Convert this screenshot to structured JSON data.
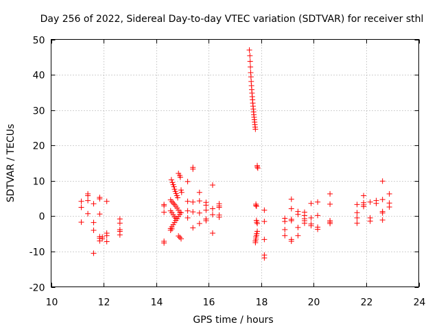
{
  "chart_data": {
    "type": "scatter",
    "marker": "plus",
    "title": "Day 256 of 2022, Sidereal Day-to-day VTEC variation (SDTVAR) for receiver sthl",
    "xlabel": "GPS time / hours",
    "ylabel": "SDTVAR / TECUs",
    "xlim": [
      10,
      24
    ],
    "ylim": [
      -20,
      50
    ],
    "xticks": [
      10,
      12,
      14,
      16,
      18,
      20,
      22,
      24
    ],
    "yticks": [
      -20,
      -10,
      0,
      10,
      20,
      30,
      40,
      50
    ],
    "xtick_labels": [
      "10",
      "12",
      "14",
      "16",
      "18",
      "20",
      "22",
      "24"
    ],
    "ytick_labels": [
      "-20",
      "-10",
      "0",
      "10",
      "20",
      "30",
      "40",
      "50"
    ],
    "grid": true,
    "color": "#ff0000",
    "series": [
      {
        "name": "sthl",
        "points": [
          [
            11.15,
            4.2
          ],
          [
            11.15,
            2.5
          ],
          [
            11.15,
            -1.7
          ],
          [
            11.4,
            6.3
          ],
          [
            11.4,
            5.8
          ],
          [
            11.4,
            4.4
          ],
          [
            11.4,
            0.7
          ],
          [
            11.62,
            3.5
          ],
          [
            11.62,
            -1.8
          ],
          [
            11.62,
            -4.0
          ],
          [
            11.62,
            -10.5
          ],
          [
            11.85,
            5.3
          ],
          [
            11.85,
            4.9
          ],
          [
            11.85,
            0.6
          ],
          [
            11.85,
            -5.8
          ],
          [
            11.85,
            -6.3
          ],
          [
            11.85,
            -7.0
          ],
          [
            11.95,
            -5.9
          ],
          [
            11.95,
            -6.4
          ],
          [
            12.12,
            4.2
          ],
          [
            12.12,
            -4.8
          ],
          [
            12.12,
            -5.5
          ],
          [
            12.12,
            -7.2
          ],
          [
            12.62,
            -0.8
          ],
          [
            12.62,
            -2.0
          ],
          [
            12.62,
            -3.8
          ],
          [
            12.62,
            -4.3
          ],
          [
            12.62,
            -5.3
          ],
          [
            14.3,
            3.3
          ],
          [
            14.3,
            2.9
          ],
          [
            14.3,
            1.1
          ],
          [
            14.3,
            -7.1
          ],
          [
            14.3,
            -7.6
          ],
          [
            14.58,
            10.3
          ],
          [
            14.62,
            9.5
          ],
          [
            14.65,
            8.9
          ],
          [
            14.68,
            8.3
          ],
          [
            14.7,
            7.6
          ],
          [
            14.73,
            7.0
          ],
          [
            14.76,
            6.4
          ],
          [
            14.79,
            5.8
          ],
          [
            14.82,
            5.2
          ],
          [
            14.55,
            4.6
          ],
          [
            14.6,
            4.1
          ],
          [
            14.65,
            3.7
          ],
          [
            14.7,
            3.3
          ],
          [
            14.75,
            2.8
          ],
          [
            14.8,
            2.3
          ],
          [
            14.85,
            1.7
          ],
          [
            14.9,
            1.1
          ],
          [
            14.55,
            1.5
          ],
          [
            14.6,
            1.0
          ],
          [
            14.65,
            0.4
          ],
          [
            14.7,
            -0.2
          ],
          [
            14.75,
            -0.6
          ],
          [
            14.55,
            -3.5
          ],
          [
            14.6,
            -3.0
          ],
          [
            14.65,
            -2.4
          ],
          [
            14.7,
            -1.8
          ],
          [
            14.75,
            -1.2
          ],
          [
            14.8,
            -0.7
          ],
          [
            14.85,
            -0.1
          ],
          [
            14.9,
            0.5
          ],
          [
            14.95,
            1.0
          ],
          [
            14.55,
            -4.0
          ],
          [
            14.6,
            -3.6
          ],
          [
            14.85,
            12.1
          ],
          [
            14.9,
            11.5
          ],
          [
            14.92,
            11.0
          ],
          [
            14.95,
            7.4
          ],
          [
            14.97,
            6.7
          ],
          [
            14.85,
            -5.6
          ],
          [
            14.9,
            -6.0
          ],
          [
            14.95,
            -6.4
          ],
          [
            15.2,
            9.8
          ],
          [
            15.2,
            4.2
          ],
          [
            15.2,
            1.5
          ],
          [
            15.2,
            -0.5
          ],
          [
            15.4,
            13.8
          ],
          [
            15.4,
            13.3
          ],
          [
            15.4,
            4.0
          ],
          [
            15.4,
            1.2
          ],
          [
            15.4,
            -3.3
          ],
          [
            15.65,
            6.7
          ],
          [
            15.65,
            4.3
          ],
          [
            15.65,
            0.9
          ],
          [
            15.65,
            -2.1
          ],
          [
            15.9,
            3.9
          ],
          [
            15.9,
            3.1
          ],
          [
            15.9,
            1.7
          ],
          [
            15.9,
            -0.8
          ],
          [
            15.9,
            -1.3
          ],
          [
            16.15,
            8.8
          ],
          [
            16.15,
            2.1
          ],
          [
            16.15,
            0.4
          ],
          [
            16.15,
            -4.8
          ],
          [
            16.4,
            3.5
          ],
          [
            16.4,
            2.9
          ],
          [
            16.4,
            2.5
          ],
          [
            16.4,
            0.3
          ],
          [
            16.4,
            -0.3
          ],
          [
            17.55,
            47.0
          ],
          [
            17.57,
            45.4
          ],
          [
            17.58,
            43.8
          ],
          [
            17.59,
            42.2
          ],
          [
            17.6,
            40.6
          ],
          [
            17.61,
            39.4
          ],
          [
            17.62,
            38.1
          ],
          [
            17.63,
            36.9
          ],
          [
            17.64,
            35.8
          ],
          [
            17.65,
            34.8
          ],
          [
            17.66,
            33.8
          ],
          [
            17.67,
            32.9
          ],
          [
            17.68,
            32.0
          ],
          [
            17.69,
            31.1
          ],
          [
            17.7,
            30.3
          ],
          [
            17.71,
            29.5
          ],
          [
            17.72,
            28.7
          ],
          [
            17.73,
            28.0
          ],
          [
            17.74,
            27.3
          ],
          [
            17.75,
            26.6
          ],
          [
            17.76,
            25.9
          ],
          [
            17.77,
            25.2
          ],
          [
            17.78,
            24.6
          ],
          [
            17.85,
            14.3
          ],
          [
            17.85,
            13.9
          ],
          [
            17.87,
            13.6
          ],
          [
            17.8,
            3.4
          ],
          [
            17.8,
            3.0
          ],
          [
            17.82,
            2.8
          ],
          [
            17.82,
            -1.2
          ],
          [
            17.83,
            -1.7
          ],
          [
            17.85,
            -2.1
          ],
          [
            17.85,
            -4.3
          ],
          [
            17.83,
            -4.9
          ],
          [
            17.82,
            -5.4
          ],
          [
            17.8,
            -5.9
          ],
          [
            17.8,
            -6.5
          ],
          [
            17.78,
            -7.0
          ],
          [
            17.78,
            -7.5
          ],
          [
            18.12,
            1.7
          ],
          [
            18.12,
            -1.5
          ],
          [
            18.12,
            -6.6
          ],
          [
            18.12,
            -11.0
          ],
          [
            18.12,
            -11.8
          ],
          [
            18.9,
            -0.6
          ],
          [
            18.9,
            -1.5
          ],
          [
            18.9,
            -3.8
          ],
          [
            18.9,
            -5.5
          ],
          [
            19.15,
            4.8
          ],
          [
            19.15,
            2.1
          ],
          [
            19.15,
            -0.9
          ],
          [
            19.15,
            -1.3
          ],
          [
            19.15,
            -6.6
          ],
          [
            19.15,
            -7.1
          ],
          [
            19.4,
            1.3
          ],
          [
            19.4,
            0.5
          ],
          [
            19.4,
            -3.2
          ],
          [
            19.4,
            -5.5
          ],
          [
            19.65,
            1.1
          ],
          [
            19.65,
            0.2
          ],
          [
            19.65,
            -0.7
          ],
          [
            19.65,
            -1.3
          ],
          [
            19.65,
            -2.0
          ],
          [
            19.9,
            3.6
          ],
          [
            19.9,
            -0.5
          ],
          [
            19.9,
            -2.2
          ],
          [
            19.9,
            -2.7
          ],
          [
            20.15,
            4.0
          ],
          [
            20.15,
            0.2
          ],
          [
            20.15,
            -3.1
          ],
          [
            20.15,
            -3.7
          ],
          [
            20.62,
            6.3
          ],
          [
            20.62,
            3.4
          ],
          [
            20.62,
            -1.3
          ],
          [
            20.62,
            -1.7
          ],
          [
            20.62,
            -2.1
          ],
          [
            21.65,
            3.3
          ],
          [
            21.65,
            1.0
          ],
          [
            21.65,
            -0.5
          ],
          [
            21.65,
            -2.0
          ],
          [
            21.9,
            5.8
          ],
          [
            21.9,
            3.8
          ],
          [
            21.9,
            3.2
          ],
          [
            21.9,
            2.7
          ],
          [
            22.15,
            4.0
          ],
          [
            22.15,
            -0.5
          ],
          [
            22.15,
            -1.4
          ],
          [
            22.38,
            4.4
          ],
          [
            22.38,
            3.6
          ],
          [
            22.62,
            9.9
          ],
          [
            22.62,
            4.7
          ],
          [
            22.62,
            1.3
          ],
          [
            22.62,
            0.9
          ],
          [
            22.62,
            -1.1
          ],
          [
            22.88,
            6.3
          ],
          [
            22.88,
            3.7
          ],
          [
            22.88,
            2.6
          ]
        ]
      }
    ]
  }
}
